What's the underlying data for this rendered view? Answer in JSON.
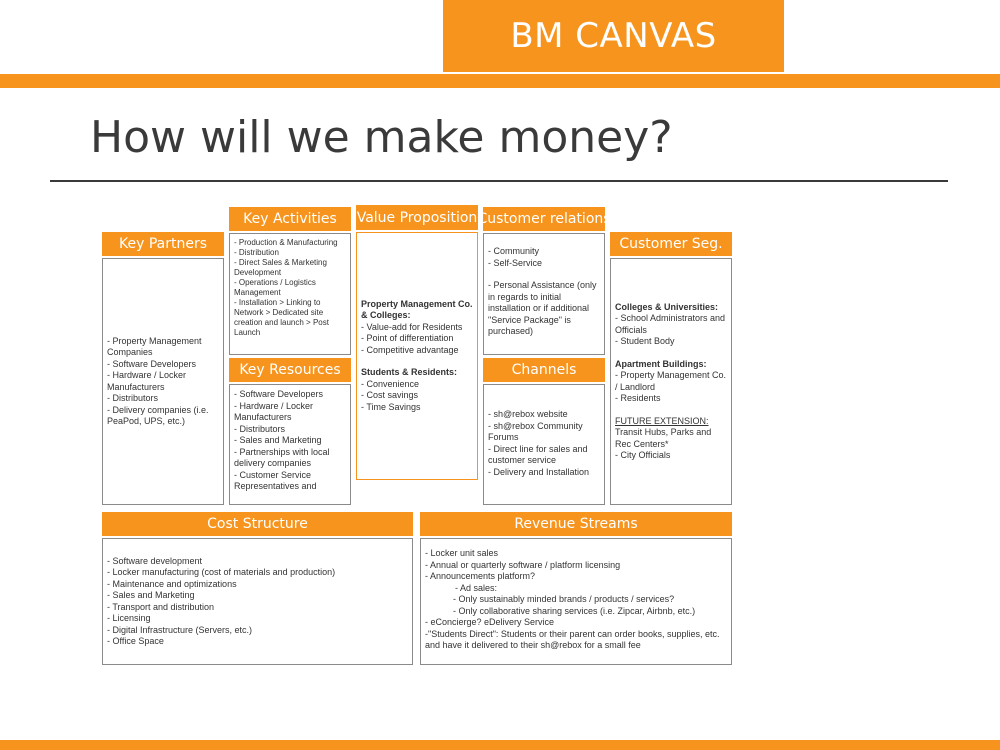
{
  "banner": {
    "title": "BM CANVAS"
  },
  "headline": "How will we make money?",
  "canvas": {
    "key_partners": {
      "title": "Key Partners",
      "lines": [
        "- Property Management Companies",
        "- Software Developers",
        "- Hardware / Locker Manufacturers",
        "- Distributors",
        "- Delivery companies (i.e. PeaPod, UPS, etc.)"
      ]
    },
    "key_activities": {
      "title": "Key Activities",
      "lines": [
        "- Production & Manufacturing",
        "- Distribution",
        "- Direct Sales & Marketing Development",
        "- Operations / Logistics Management",
        "- Installation > Linking to Network > Dedicated site creation and launch > Post Launch"
      ]
    },
    "key_resources": {
      "title": "Key Resources",
      "lines": [
        "- Software Developers",
        "- Hardware / Locker Manufacturers",
        "- Distributors",
        "- Sales and Marketing",
        "- Partnerships with local delivery companies",
        "- Customer Service Representatives and"
      ]
    },
    "value_proposition": {
      "title": "Value Proposition",
      "group1_heading": "Property Management Co. & Colleges:",
      "group1": [
        "- Value-add for Residents",
        "- Point of differentiation",
        "- Competitive advantage"
      ],
      "group2_heading": "Students & Residents:",
      "group2": [
        "- Convenience",
        "- Cost savings",
        "- Time Savings"
      ]
    },
    "customer_relations": {
      "title": "Customer relations",
      "lines_a": [
        "- Community",
        "- Self-Service"
      ],
      "lines_b": [
        "- Personal Assistance (only in regards to initial installation or if additional \"Service Package\" is purchased)"
      ]
    },
    "channels": {
      "title": "Channels",
      "lines": [
        "- sh@rebox website",
        "- sh@rebox Community Forums",
        "- Direct line for sales and customer service",
        "- Delivery and Installation"
      ]
    },
    "customer_segments": {
      "title": "Customer Seg.",
      "group1_heading": "Colleges & Universities:",
      "group1": [
        "- School Administrators and Officials",
        "- Student Body"
      ],
      "group2_heading": "Apartment Buildings:",
      "group2": [
        "- Property Management Co. / Landlord",
        "- Residents"
      ],
      "group3_heading": "FUTURE EXTENSION:",
      "group3": [
        "Transit Hubs, Parks and Rec Centers*",
        "- City Officials"
      ]
    },
    "cost_structure": {
      "title": "Cost Structure",
      "lines": [
        "- Software development",
        "- Locker manufacturing (cost of materials and production)",
        "- Maintenance and optimizations",
        "- Sales and Marketing",
        "- Transport and distribution",
        "- Licensing",
        "- Digital Infrastructure (Servers, etc.)",
        "- Office Space"
      ]
    },
    "revenue_streams": {
      "title": "Revenue Streams",
      "lines": [
        "- Locker unit sales",
        "- Annual or quarterly software / platform licensing",
        "- Announcements platform?",
        "- Ad sales:",
        "- Only sustainably minded brands / products / services?",
        "- Only collaborative sharing services (i.e. Zipcar, Airbnb, etc.)",
        "- eConcierge? eDelivery Service",
        "-\"Students Direct\": Students or their parent can order books, supplies, etc. and have it delivered to their sh@rebox for a small fee"
      ]
    }
  }
}
